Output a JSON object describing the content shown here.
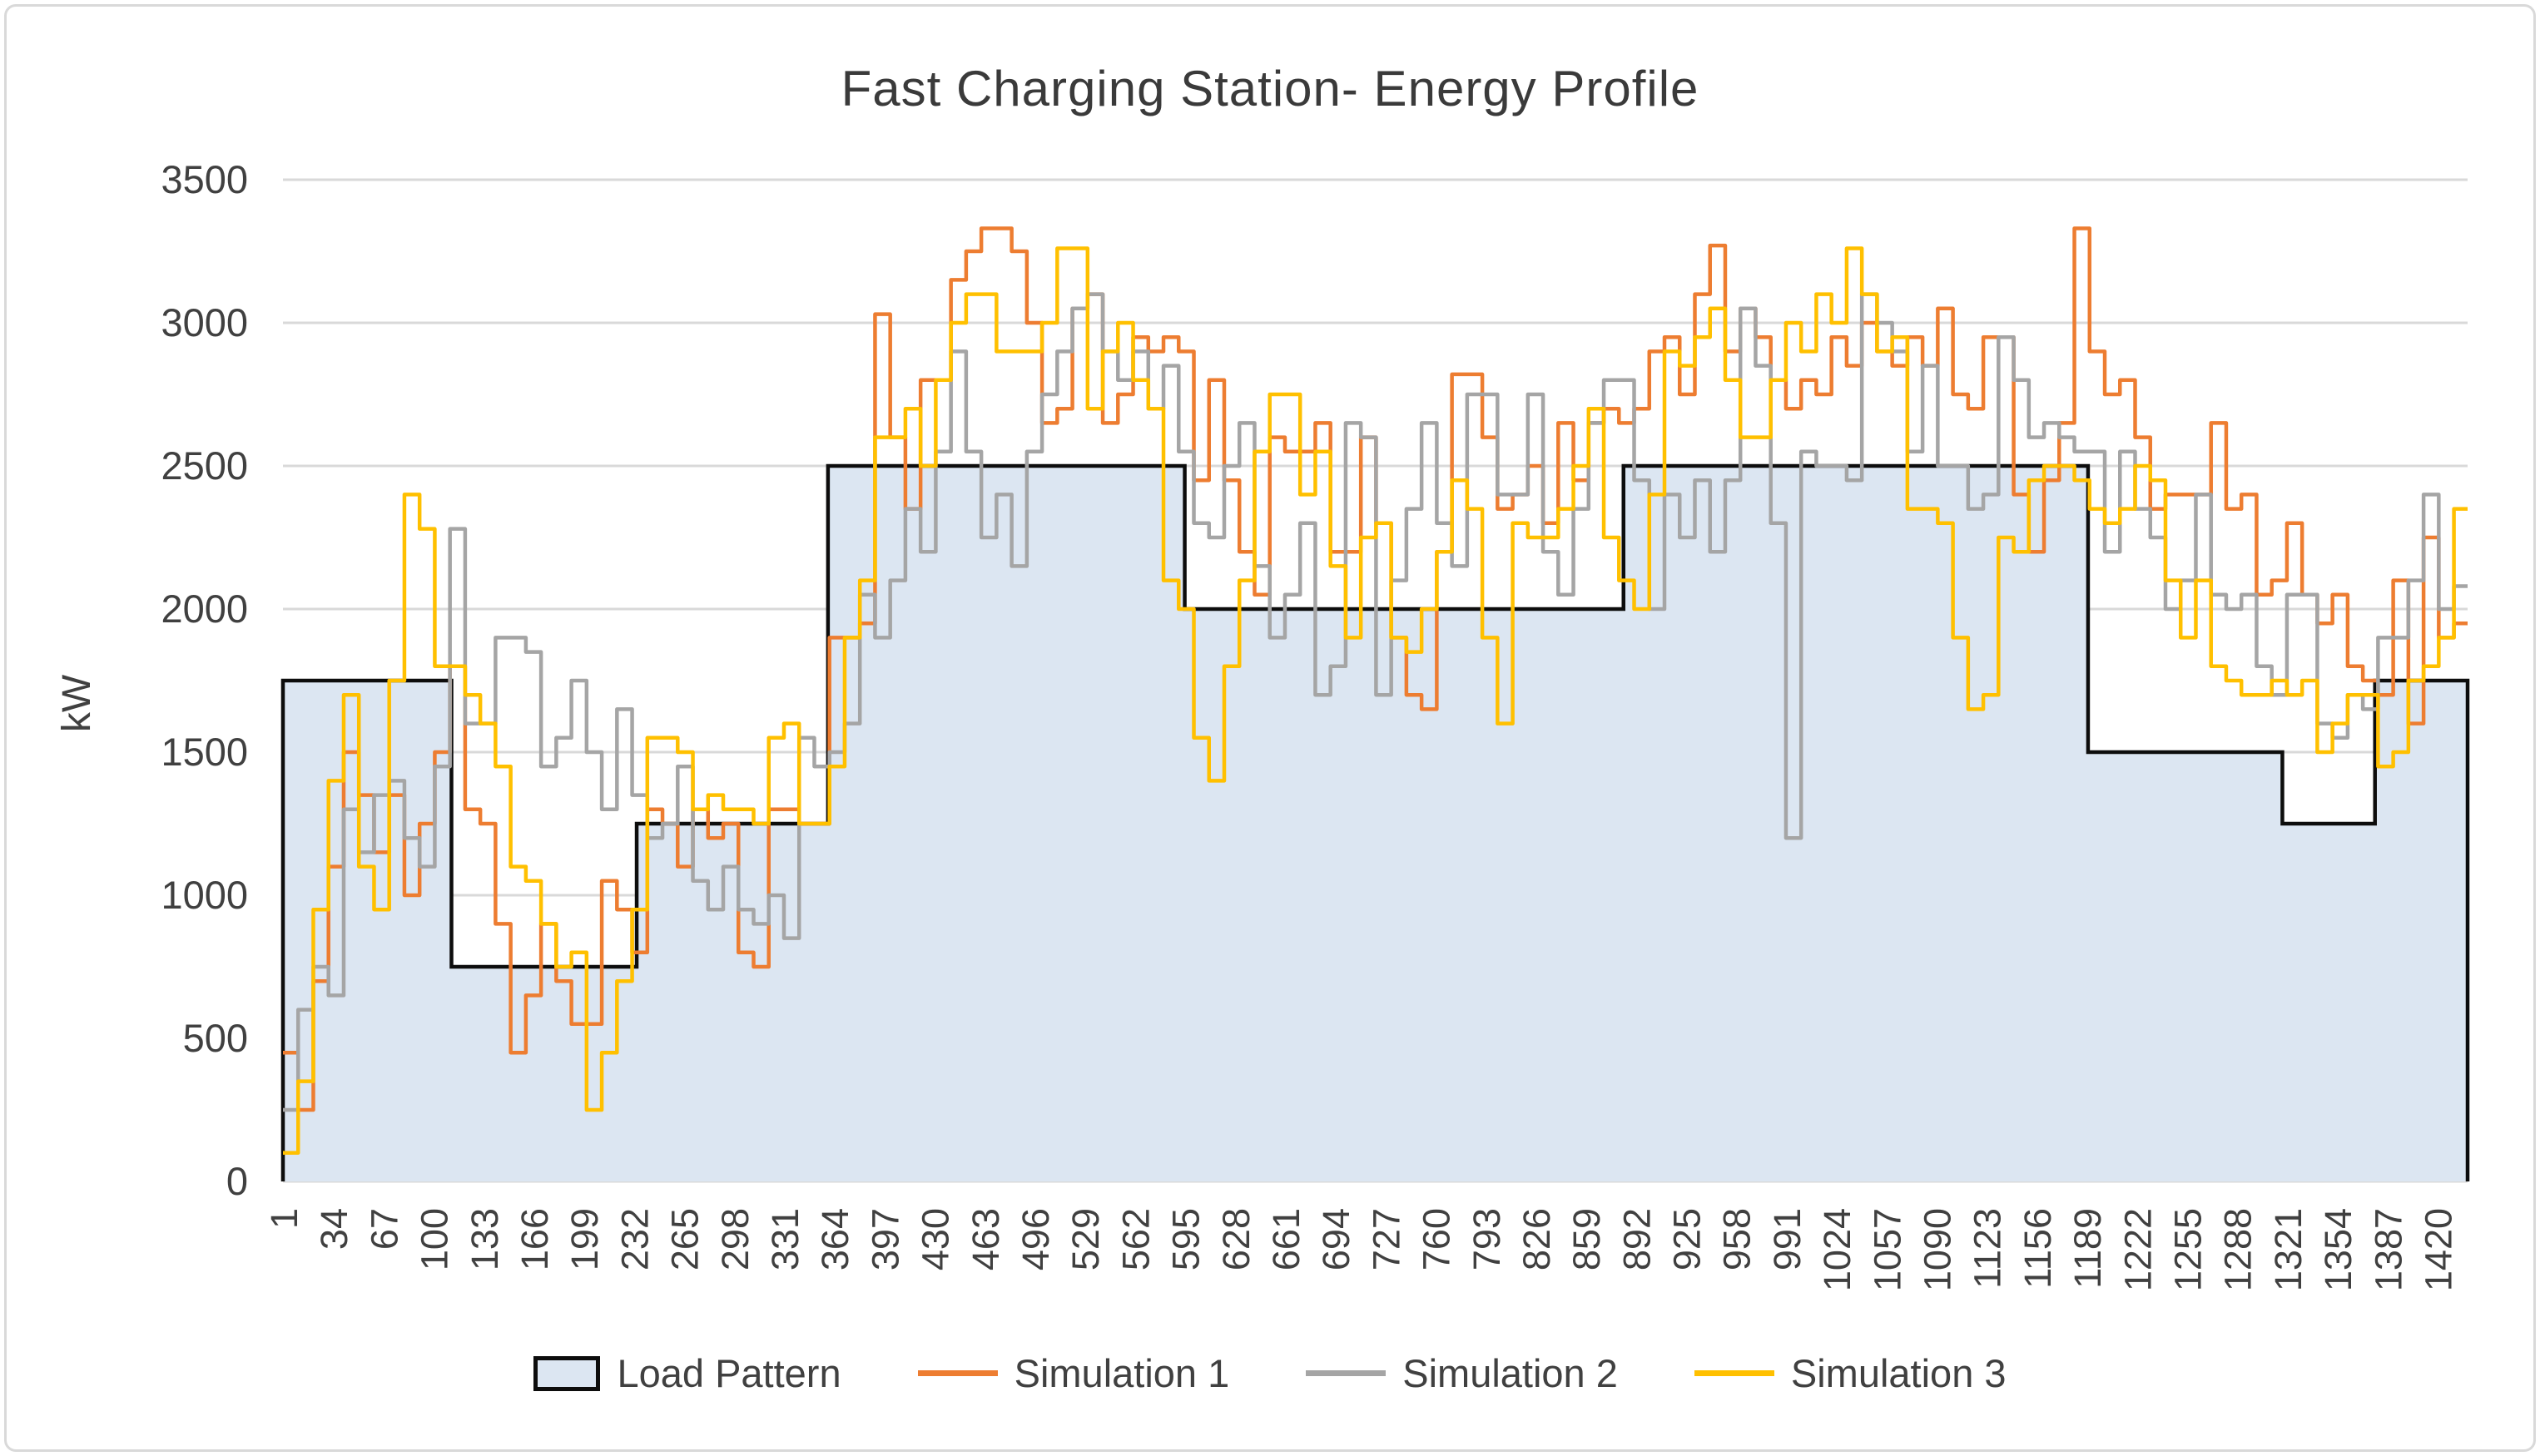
{
  "chart_data": {
    "type": "line",
    "title": "Fast Charging Station- Energy Profile",
    "xlabel": "",
    "ylabel": "kW",
    "ylim": [
      0,
      3500
    ],
    "yticks": [
      0,
      500,
      1000,
      1500,
      2000,
      2500,
      3000,
      3500
    ],
    "xlim": [
      1,
      1440
    ],
    "xticks": [
      1,
      34,
      67,
      100,
      133,
      166,
      199,
      232,
      265,
      298,
      331,
      364,
      397,
      430,
      463,
      496,
      529,
      562,
      595,
      628,
      661,
      694,
      727,
      760,
      793,
      826,
      859,
      892,
      925,
      958,
      991,
      1024,
      1057,
      1090,
      1123,
      1156,
      1189,
      1222,
      1255,
      1288,
      1321,
      1354,
      1387,
      1420
    ],
    "grid": true,
    "legend_position": "bottom",
    "palette": {
      "grid": "#d9d9d9",
      "axis_text": "#404040",
      "title_text": "#3a3a3a",
      "background": "#ffffff",
      "border": "#d9d9d9"
    },
    "series": [
      {
        "name": "Load Pattern",
        "type": "step_area",
        "line_color": "#0d0d0d",
        "fill_color": "#dce6f2",
        "x_end": 1440,
        "steps": [
          [
            1,
            1750
          ],
          [
            112,
            750
          ],
          [
            234,
            1250
          ],
          [
            360,
            2500
          ],
          [
            595,
            2000
          ],
          [
            884,
            2500
          ],
          [
            1190,
            1500
          ],
          [
            1318,
            1250
          ],
          [
            1379,
            1750
          ]
        ]
      },
      {
        "name": "Simulation 1",
        "type": "step_line",
        "line_color": "#ed7d31",
        "x_start": 1,
        "x_step": 10,
        "values": [
          450,
          250,
          700,
          1100,
          1500,
          1350,
          1150,
          1350,
          1000,
          1250,
          1500,
          1800,
          1300,
          1250,
          900,
          450,
          650,
          900,
          700,
          550,
          550,
          1050,
          950,
          800,
          1300,
          1250,
          1100,
          1300,
          1200,
          1250,
          800,
          750,
          1300,
          1300,
          1250,
          1250,
          1900,
          1900,
          1950,
          3030,
          2600,
          2350,
          2800,
          2800,
          3150,
          3250,
          3330,
          3330,
          3250,
          3000,
          2650,
          2700,
          3050,
          3100,
          2650,
          2750,
          2950,
          2900,
          2950,
          2900,
          2450,
          2800,
          2450,
          2200,
          2050,
          2600,
          2550,
          2550,
          2650,
          2200,
          2200,
          2600,
          2300,
          1900,
          1700,
          1650,
          2200,
          2820,
          2820,
          2600,
          2350,
          2400,
          2500,
          2300,
          2650,
          2450,
          2650,
          2700,
          2650,
          2700,
          2900,
          2950,
          2750,
          3100,
          3270,
          2900,
          3050,
          2950,
          2800,
          2700,
          2800,
          2750,
          2950,
          2850,
          3000,
          2900,
          2850,
          2950,
          2850,
          3050,
          2750,
          2700,
          2950,
          2950,
          2400,
          2200,
          2450,
          2650,
          3330,
          2900,
          2750,
          2800,
          2600,
          2350,
          2400,
          2400,
          2400,
          2650,
          2350,
          2400,
          2050,
          2100,
          2300,
          2050,
          1950,
          2050,
          1800,
          1750,
          1700,
          2100,
          1600,
          2250,
          1900,
          1950
        ]
      },
      {
        "name": "Simulation 2",
        "type": "step_line",
        "line_color": "#a5a5a5",
        "x_start": 1,
        "x_step": 10,
        "values": [
          250,
          600,
          750,
          650,
          1300,
          1150,
          1350,
          1400,
          1200,
          1100,
          1450,
          2280,
          1600,
          1600,
          1900,
          1900,
          1850,
          1450,
          1550,
          1750,
          1500,
          1300,
          1650,
          1350,
          1200,
          1250,
          1450,
          1050,
          950,
          1100,
          950,
          900,
          1000,
          850,
          1550,
          1450,
          1500,
          1600,
          2050,
          1900,
          2100,
          2350,
          2200,
          2550,
          2900,
          2550,
          2250,
          2400,
          2150,
          2550,
          2750,
          2900,
          3050,
          3100,
          2900,
          2800,
          2900,
          2700,
          2850,
          2550,
          2300,
          2250,
          2500,
          2650,
          2150,
          1900,
          2050,
          2300,
          1700,
          1800,
          2650,
          2600,
          1700,
          2100,
          2350,
          2650,
          2300,
          2150,
          2750,
          2750,
          2400,
          2400,
          2750,
          2200,
          2050,
          2350,
          2650,
          2800,
          2800,
          2450,
          2000,
          2400,
          2250,
          2450,
          2200,
          2450,
          3050,
          2850,
          2300,
          1200,
          2550,
          2500,
          2500,
          2450,
          3100,
          3000,
          2900,
          2550,
          2850,
          2500,
          2500,
          2350,
          2400,
          2950,
          2800,
          2600,
          2650,
          2600,
          2550,
          2550,
          2200,
          2550,
          2350,
          2250,
          2000,
          2100,
          2400,
          2050,
          2000,
          2050,
          1800,
          1700,
          2050,
          2050,
          1600,
          1550,
          1700,
          1650,
          1900,
          1900,
          2100,
          2400,
          2000,
          2080
        ]
      },
      {
        "name": "Simulation 3",
        "type": "step_line",
        "line_color": "#ffc000",
        "x_start": 1,
        "x_step": 10,
        "values": [
          100,
          350,
          950,
          1400,
          1700,
          1100,
          950,
          1750,
          2400,
          2280,
          1800,
          1800,
          1700,
          1600,
          1450,
          1100,
          1050,
          900,
          750,
          800,
          250,
          450,
          700,
          950,
          1550,
          1550,
          1500,
          1300,
          1350,
          1300,
          1300,
          1250,
          1550,
          1600,
          1250,
          1250,
          1450,
          1900,
          2100,
          2600,
          2600,
          2700,
          2500,
          2800,
          3000,
          3100,
          3100,
          2900,
          2900,
          2900,
          3000,
          3260,
          3260,
          2700,
          2900,
          3000,
          2800,
          2700,
          2100,
          2000,
          1550,
          1400,
          1800,
          2100,
          2550,
          2750,
          2750,
          2400,
          2550,
          2150,
          1900,
          2250,
          2300,
          1900,
          1850,
          2000,
          2200,
          2450,
          2350,
          1900,
          1600,
          2300,
          2250,
          2250,
          2350,
          2500,
          2700,
          2250,
          2100,
          2000,
          2400,
          2900,
          2850,
          2950,
          3050,
          2800,
          2600,
          2600,
          2800,
          3000,
          2900,
          3100,
          3000,
          3260,
          3100,
          2900,
          2950,
          2350,
          2350,
          2300,
          1900,
          1650,
          1700,
          2250,
          2200,
          2450,
          2500,
          2500,
          2450,
          2350,
          2300,
          2350,
          2500,
          2450,
          2100,
          1900,
          2100,
          1800,
          1750,
          1700,
          1700,
          1750,
          1700,
          1750,
          1500,
          1600,
          1700,
          1700,
          1450,
          1500,
          1750,
          1800,
          1900,
          2350
        ]
      }
    ]
  }
}
